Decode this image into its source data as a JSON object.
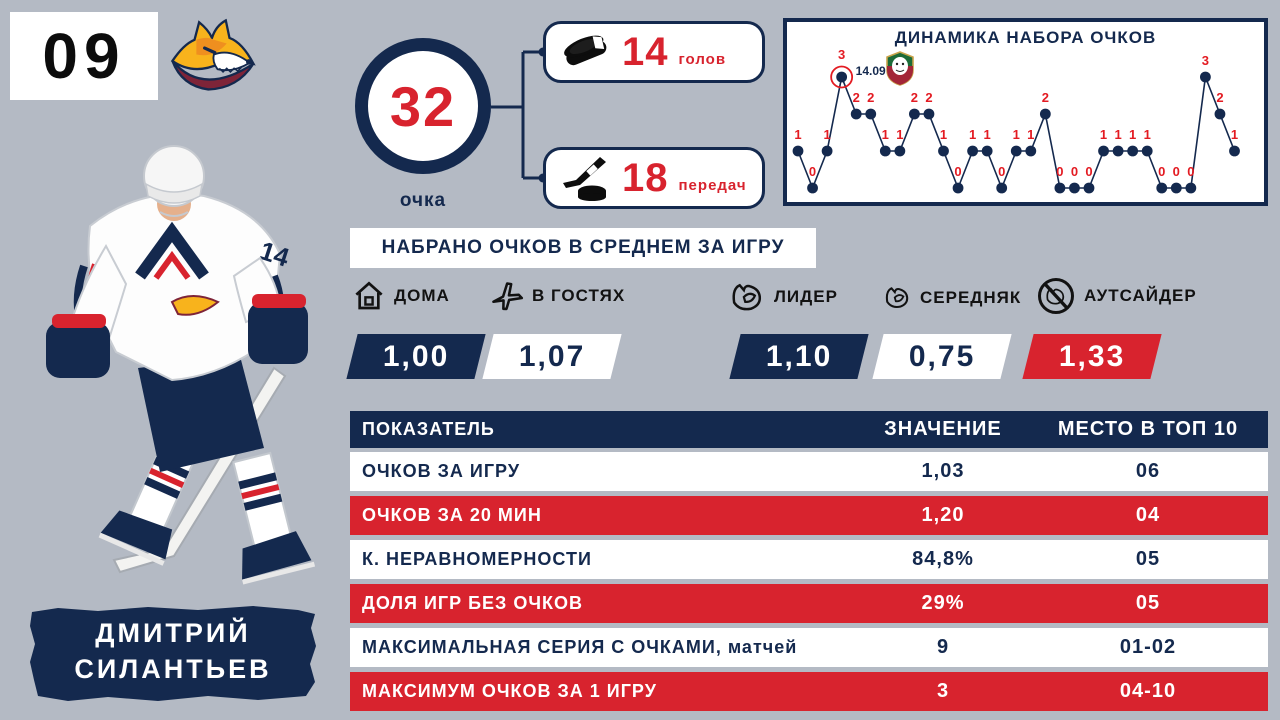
{
  "header": {
    "player_number": "09",
    "team_logo": "metallurg-magnitogorsk-fox",
    "first_name": "ДМИТРИЙ",
    "last_name": "СИЛАНТЬЕВ",
    "jersey_number": "14"
  },
  "points_summary": {
    "total": "32",
    "total_unit": "очка",
    "goals": {
      "value": "14",
      "label": "голов",
      "icon": "puck-icon"
    },
    "assists": {
      "value": "18",
      "label": "передач",
      "icon": "hockey-stick-puck-icon"
    }
  },
  "chart_data": {
    "type": "line",
    "title": "ДИНАМИКА НАБОРА ОЧКОВ",
    "x_unit": "game",
    "values": [
      1,
      0,
      1,
      3,
      2,
      2,
      1,
      1,
      2,
      2,
      1,
      0,
      1,
      1,
      0,
      1,
      1,
      2,
      0,
      0,
      0,
      1,
      1,
      1,
      1,
      0,
      0,
      0,
      3,
      2,
      1
    ],
    "ylim": [
      0,
      3
    ],
    "grid": false,
    "legend": "none",
    "annotation": {
      "point_index": 3,
      "date_label": "14.09",
      "marker": "red-circle",
      "logo": "opponent-club-logo"
    },
    "line_color": "#14294e",
    "dot_color": "#14294e",
    "label_color": "#e31b22"
  },
  "avg_section": {
    "title": "НАБРАНО ОЧКОВ В СРЕДНЕМ ЗА ИГРУ",
    "stats": [
      {
        "icon": "home-icon",
        "label": "ДОМА",
        "value": "1,00",
        "variant": "dark"
      },
      {
        "icon": "plane-icon",
        "label": "В ГОСТЯХ",
        "value": "1,07",
        "variant": "light"
      },
      {
        "icon": "bicep-icon",
        "label": "ЛИДЕР",
        "value": "1,10",
        "variant": "dark"
      },
      {
        "icon": "bicep-small-icon",
        "label": "СЕРЕДНЯК",
        "value": "0,75",
        "variant": "light"
      },
      {
        "icon": "no-bicep-icon",
        "label": "АУТСАЙДЕР",
        "value": "1,33",
        "variant": "red"
      }
    ]
  },
  "table": {
    "headers": [
      "ПОКАЗАТЕЛЬ",
      "ЗНАЧЕНИЕ",
      "МЕСТО В ТОП 10"
    ],
    "rows": [
      {
        "label": "ОЧКОВ ЗА ИГРУ",
        "value": "1,03",
        "place": "06"
      },
      {
        "label": "ОЧКОВ ЗА 20 МИН",
        "value": "1,20",
        "place": "04"
      },
      {
        "label": "К. НЕРАВНОМЕРНОСТИ",
        "value": "84,8%",
        "place": "05"
      },
      {
        "label": "ДОЛЯ ИГР БЕЗ ОЧКОВ",
        "value": "29%",
        "place": "05"
      },
      {
        "label": "МАКСИМАЛЬНАЯ СЕРИЯ С ОЧКАМИ, матчей",
        "value": "9",
        "place": "01-02"
      },
      {
        "label": "МАКСИМУМ ОЧКОВ ЗА 1 ИГРУ",
        "value": "3",
        "place": "04-10"
      }
    ]
  },
  "colors": {
    "background": "#b4bac4",
    "navy": "#14294e",
    "red": "#d8232e",
    "chart_label_red": "#e31b22",
    "white": "#ffffff"
  }
}
